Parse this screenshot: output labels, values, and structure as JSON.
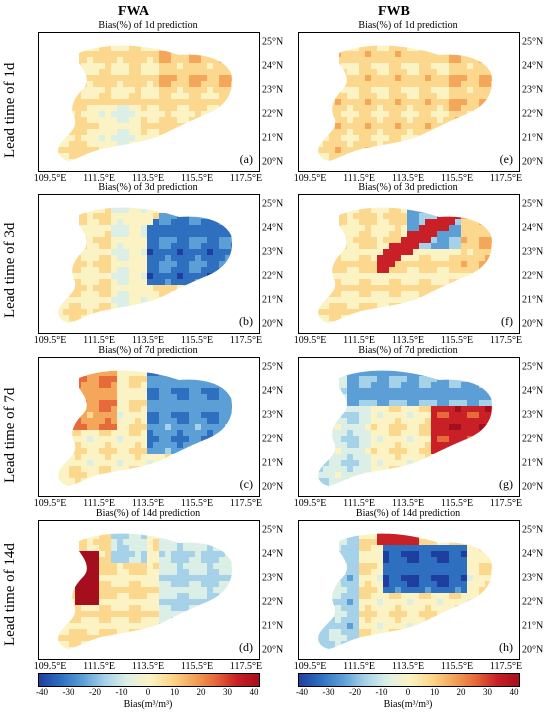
{
  "columns": [
    "FWA",
    "FWB"
  ],
  "rows": [
    "Lead time of 1d",
    "Lead time of 3d",
    "Lead time of 7d",
    "Lead time of 14d"
  ],
  "chart_data": {
    "type": "heatmap",
    "colormap": [
      "#1f3fa0",
      "#2e6fbf",
      "#5c9fd6",
      "#a5d2e8",
      "#dcefe6",
      "#fbf3c4",
      "#fbd88e",
      "#f4a65b",
      "#e66a3a",
      "#c82026",
      "#a50f1d"
    ],
    "x_ticks": [
      "109.5°E",
      "111.5°E",
      "113.5°E",
      "115.5°E",
      "117.5°E"
    ],
    "y_ticks": [
      "25°N",
      "24°N",
      "23°N",
      "22°N",
      "21°N",
      "20°N"
    ],
    "panels": [
      {
        "label": "(a)",
        "title": "Bias(%) of 1d prediction",
        "pattern": "a"
      },
      {
        "label": "(b)",
        "title": "Bias(%) of 3d prediction",
        "pattern": "b"
      },
      {
        "label": "(c)",
        "title": "Bias(%) of 7d prediction",
        "pattern": "c"
      },
      {
        "label": "(d)",
        "title": "Bias(%) of 14d prediction",
        "pattern": "d"
      },
      {
        "label": "(e)",
        "title": "Bias(%) of 1d prediction",
        "pattern": "e"
      },
      {
        "label": "(f)",
        "title": "Bias(%) of 3d prediction",
        "pattern": "f"
      },
      {
        "label": "(g)",
        "title": "Bias(%) of 7d prediction",
        "pattern": "g"
      },
      {
        "label": "(h)",
        "title": "Bias(%) of 14d prediction",
        "pattern": "h"
      }
    ],
    "colorbar": {
      "ticks": [
        "-40",
        "-30",
        "-20",
        "-10",
        "0",
        "10",
        "20",
        "30",
        "40"
      ],
      "range": [
        -40,
        40
      ]
    },
    "colorbars": [
      {
        "label": "Bias(m³/m³)"
      },
      {
        "label": "Bias(m³/m³)"
      }
    ]
  }
}
